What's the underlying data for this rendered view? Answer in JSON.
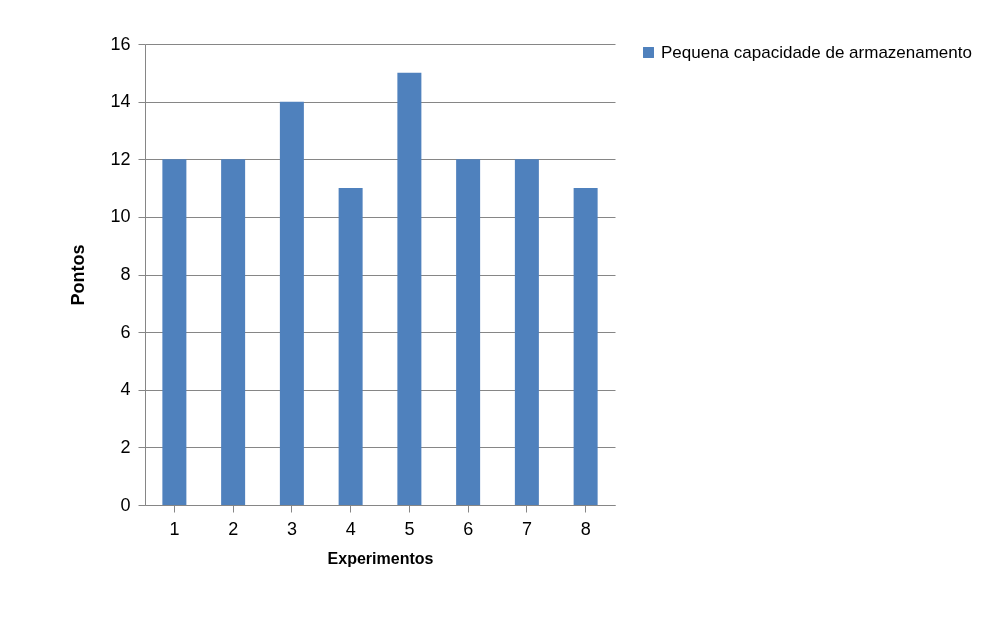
{
  "chart_data": {
    "type": "bar",
    "xlabel": "Experimentos",
    "ylabel": "Pontos",
    "categories": [
      "1",
      "2",
      "3",
      "4",
      "5",
      "6",
      "7",
      "8"
    ],
    "series": [
      {
        "name": "Pequena capacidade de armazenamento",
        "color": "#4f81bd",
        "values": [
          12,
          12,
          14,
          11,
          15,
          12,
          12,
          11
        ]
      }
    ],
    "ylim": [
      0,
      16
    ],
    "yticks": [
      0,
      2,
      4,
      6,
      8,
      10,
      12,
      14,
      16
    ],
    "grid": "y",
    "legend": "right"
  }
}
